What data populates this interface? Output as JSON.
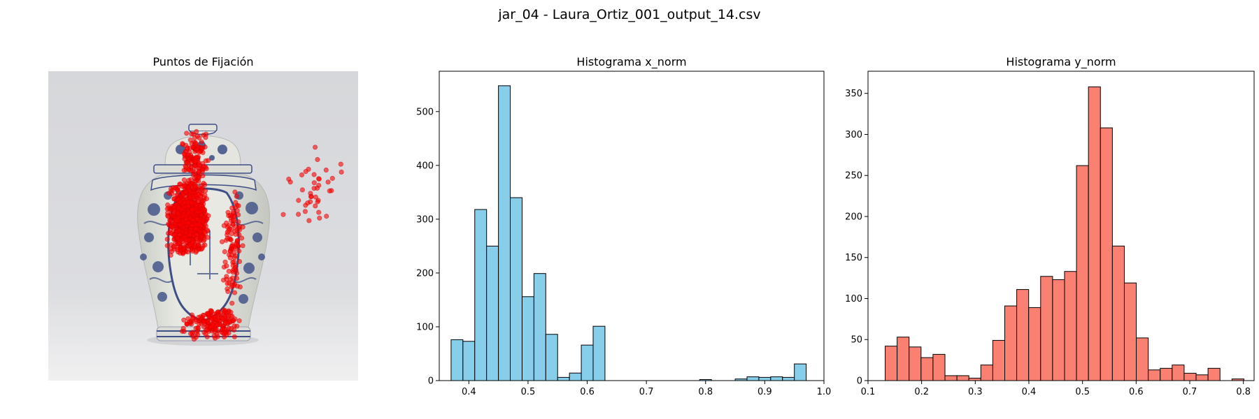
{
  "figure": {
    "suptitle": "jar_04 - Laura_Ortiz_001_output_14.csv"
  },
  "colors": {
    "x_hist_fill": "#87ceeb",
    "y_hist_fill": "#fa8072",
    "bar_edge": "#000000",
    "fixation": "#ff0000"
  },
  "chart_data": [
    {
      "type": "scatter",
      "title": "Puntos de Fijación",
      "background": "photo of a blue-and-white porcelain ginger jar with lid on a light grey background",
      "axes": "off",
      "point_color": "#ff0000",
      "point_alpha": 0.6,
      "clusters": [
        {
          "name": "jar body left",
          "x": [
            0.38,
            0.52
          ],
          "y": [
            0.35,
            0.6
          ],
          "count": 900
        },
        {
          "name": "jar lid and neck",
          "x": [
            0.43,
            0.52
          ],
          "y": [
            0.18,
            0.4
          ],
          "count": 140
        },
        {
          "name": "jar body right panel",
          "x": [
            0.56,
            0.63
          ],
          "y": [
            0.37,
            0.78
          ],
          "count": 110
        },
        {
          "name": "jar base",
          "x": [
            0.43,
            0.63
          ],
          "y": [
            0.76,
            0.87
          ],
          "count": 180
        },
        {
          "name": "outside right trail",
          "x": [
            0.75,
            0.97
          ],
          "y": [
            0.24,
            0.52
          ],
          "count": 40
        }
      ]
    },
    {
      "type": "bar",
      "title": "Histograma x_norm",
      "xlim": [
        0.35,
        1.0
      ],
      "ylim": [
        0,
        575
      ],
      "xticks": [
        "0.4",
        "0.5",
        "0.6",
        "0.7",
        "0.8",
        "0.9",
        "1.0"
      ],
      "yticks": [
        "0",
        "100",
        "200",
        "300",
        "400",
        "500"
      ],
      "bin_start": 0.37,
      "bin_width": 0.02,
      "values": [
        76,
        73,
        318,
        250,
        548,
        340,
        156,
        199,
        86,
        6,
        14,
        66,
        101,
        0,
        0,
        0,
        0,
        0,
        0,
        0,
        0,
        2,
        0,
        0,
        3,
        7,
        6,
        7,
        6,
        31
      ]
    },
    {
      "type": "bar",
      "title": "Histograma y_norm",
      "xlim": [
        0.1,
        0.82
      ],
      "ylim": [
        0,
        377
      ],
      "xticks": [
        "0.1",
        "0.2",
        "0.3",
        "0.4",
        "0.5",
        "0.6",
        "0.7",
        "0.8"
      ],
      "yticks": [
        "0",
        "50",
        "100",
        "150",
        "200",
        "250",
        "300",
        "350"
      ],
      "bin_start": 0.132,
      "bin_width": 0.0223,
      "values": [
        42,
        53,
        41,
        28,
        32,
        6,
        6,
        3,
        19,
        49,
        91,
        111,
        89,
        127,
        123,
        133,
        262,
        358,
        308,
        164,
        119,
        52,
        13,
        15,
        19,
        9,
        7,
        15,
        0,
        2
      ]
    }
  ]
}
